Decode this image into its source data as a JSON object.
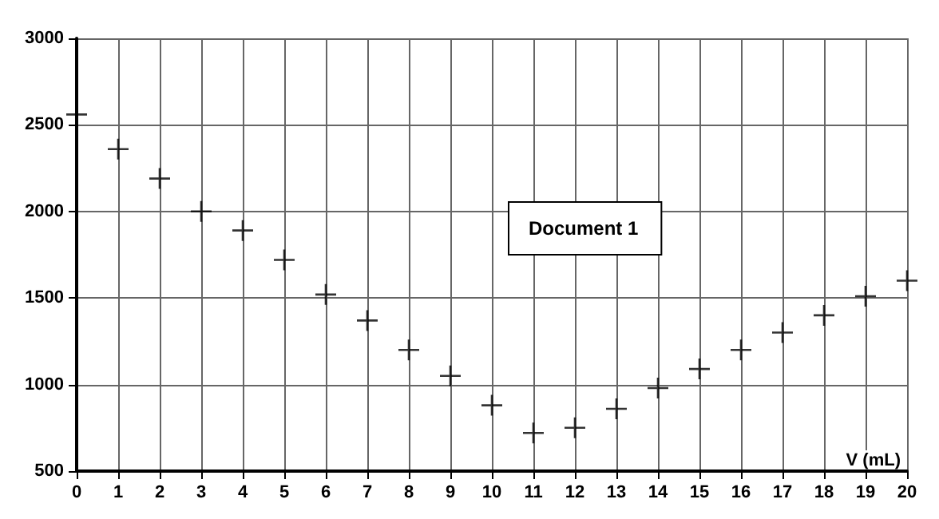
{
  "chart_data": {
    "type": "scatter",
    "xlabel": "V (mL)",
    "annotations": [
      "Document 1"
    ],
    "x": [
      0,
      1,
      2,
      3,
      4,
      5,
      6,
      7,
      8,
      9,
      10,
      11,
      12,
      13,
      14,
      15,
      16,
      17,
      18,
      19,
      20
    ],
    "values": [
      2560,
      2360,
      2190,
      2000,
      1890,
      1720,
      1520,
      1370,
      1200,
      1050,
      880,
      720,
      750,
      860,
      980,
      1090,
      1200,
      1300,
      1400,
      1510,
      1600
    ],
    "color": "#000000",
    "xlim": [
      0,
      20
    ],
    "xticks": [
      0,
      1,
      2,
      3,
      4,
      5,
      6,
      7,
      8,
      9,
      10,
      11,
      12,
      13,
      14,
      15,
      16,
      17,
      18,
      19,
      20
    ],
    "ylim": [
      500,
      3000
    ],
    "yticks": [
      500,
      1000,
      1500,
      2000,
      2500,
      3000
    ],
    "grid": true,
    "marker": "cross"
  }
}
